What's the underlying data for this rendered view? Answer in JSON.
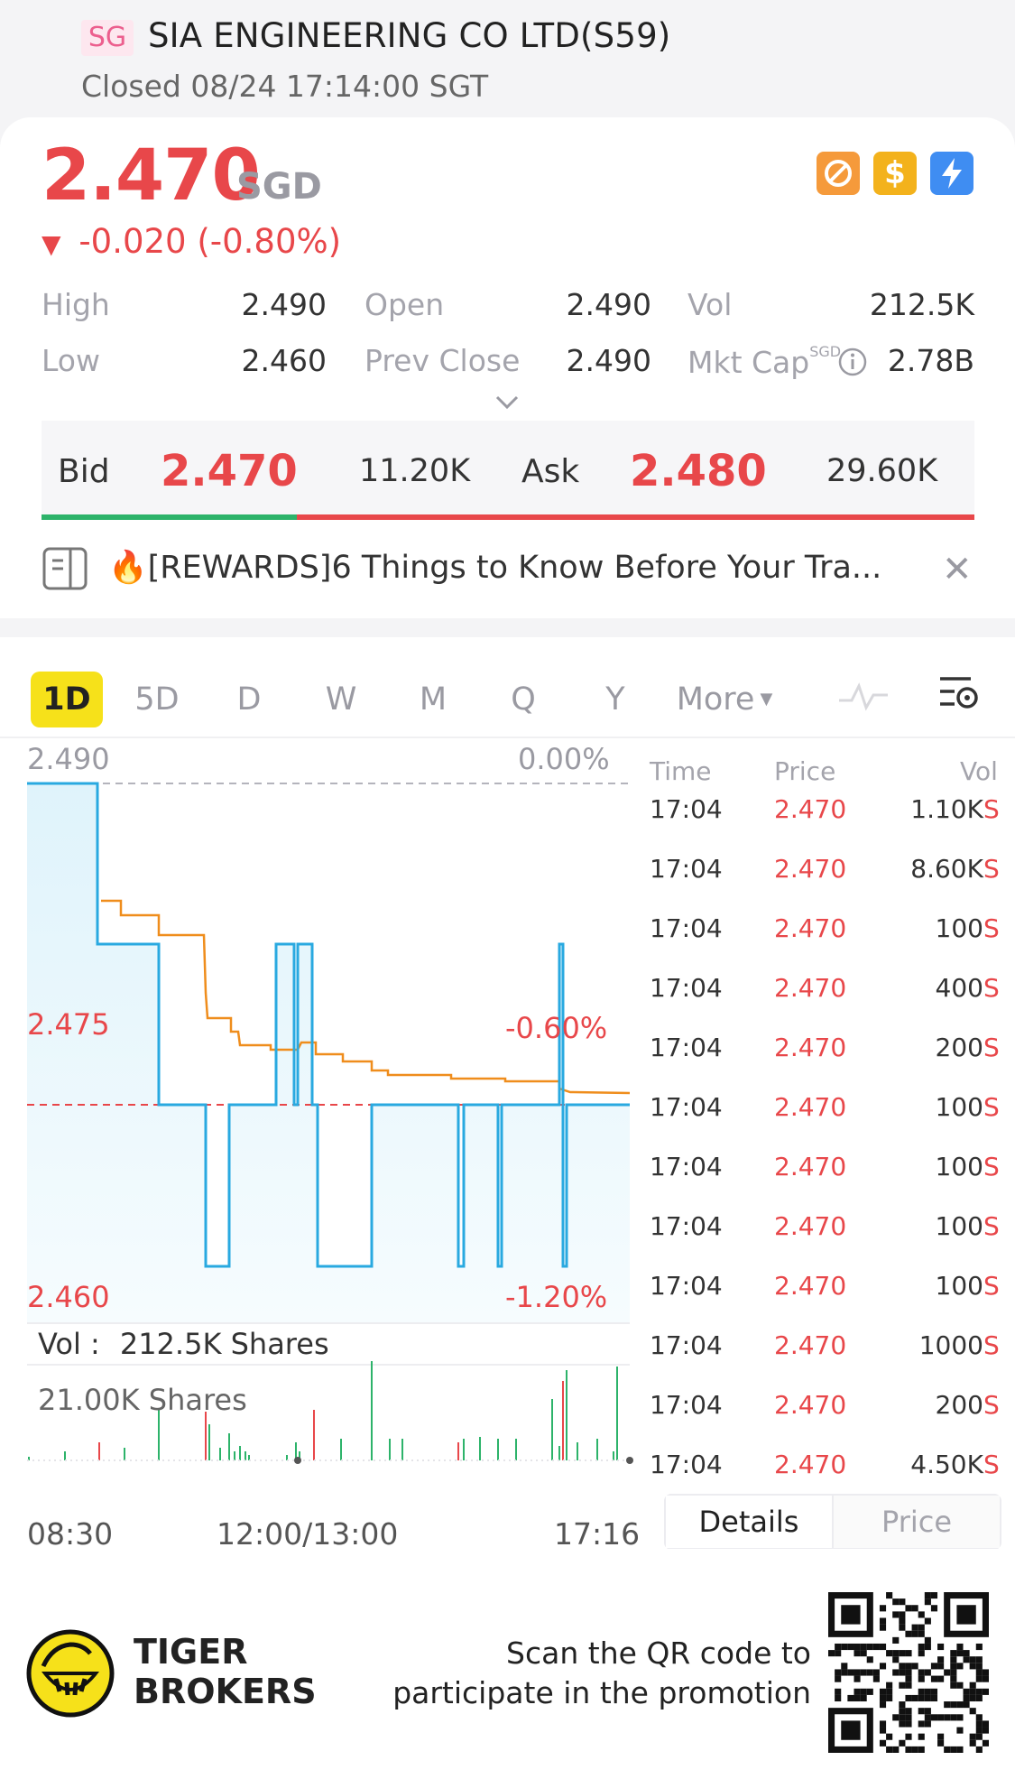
{
  "header": {
    "market_badge": "SG",
    "title": "SIA ENGINEERING CO LTD(S59)",
    "status": "Closed 08/24 17:14:00 SGT"
  },
  "quote": {
    "price": "2.470",
    "currency": "SGD",
    "change": "-0.020 (-0.80%)",
    "stats": {
      "high_label": "High",
      "high": "2.490",
      "low_label": "Low",
      "low": "2.460",
      "open_label": "Open",
      "open": "2.490",
      "prev_close_label": "Prev Close",
      "prev_close": "2.490",
      "vol_label": "Vol",
      "vol": "212.5K",
      "mkt_cap_label": "Mkt Cap",
      "mkt_cap_unit": "SGD",
      "mkt_cap": "2.78B"
    }
  },
  "bid_ask": {
    "bid_label": "Bid",
    "bid_price": "2.470",
    "bid_vol": "11.20K",
    "ask_label": "Ask",
    "ask_price": "2.480",
    "ask_vol": "29.60K",
    "bid_ratio": 0.274
  },
  "news": {
    "text": "🔥[REWARDS]6 Things to Know Before Your Tra..."
  },
  "tabs": [
    "1D",
    "5D",
    "D",
    "W",
    "M",
    "Q",
    "Y",
    "More"
  ],
  "chart": {
    "price_top": "2.490",
    "pct_top": "0.00%",
    "price_mid": "2.475",
    "pct_mid": "-0.60%",
    "price_bottom": "2.460",
    "pct_bottom": "-1.20%",
    "vol_label": "Vol :",
    "vol_value": "212.5K Shares",
    "vol_max": "21.00K Shares",
    "time_start": "08:30",
    "time_mid": "12:00/13:00",
    "time_end": "17:16"
  },
  "trades": {
    "headers": {
      "time": "Time",
      "price": "Price",
      "vol": "Vol"
    },
    "rows": [
      {
        "time": "17:04",
        "price": "2.470",
        "vol": "1.10K",
        "side": "S"
      },
      {
        "time": "17:04",
        "price": "2.470",
        "vol": "8.60K",
        "side": "S"
      },
      {
        "time": "17:04",
        "price": "2.470",
        "vol": "100",
        "side": "S"
      },
      {
        "time": "17:04",
        "price": "2.470",
        "vol": "400",
        "side": "S"
      },
      {
        "time": "17:04",
        "price": "2.470",
        "vol": "200",
        "side": "S"
      },
      {
        "time": "17:04",
        "price": "2.470",
        "vol": "100",
        "side": "S"
      },
      {
        "time": "17:04",
        "price": "2.470",
        "vol": "100",
        "side": "S"
      },
      {
        "time": "17:04",
        "price": "2.470",
        "vol": "100",
        "side": "S"
      },
      {
        "time": "17:04",
        "price": "2.470",
        "vol": "100",
        "side": "S"
      },
      {
        "time": "17:04",
        "price": "2.470",
        "vol": "1000",
        "side": "S"
      },
      {
        "time": "17:04",
        "price": "2.470",
        "vol": "200",
        "side": "S"
      },
      {
        "time": "17:04",
        "price": "2.470",
        "vol": "4.50K",
        "side": "S"
      }
    ],
    "details_tab": "Details",
    "price_tab": "Price"
  },
  "footer": {
    "brand_line1": "TIGER",
    "brand_line2": "BROKERS",
    "promo_line1": "Scan the QR code to",
    "promo_line2": "participate in the promotion"
  },
  "colors": {
    "up": "#2db36a",
    "down": "#e8474a",
    "accent": "#f6e11a",
    "price_line": "#29a9e0",
    "avg_line": "#ef8d1c"
  }
}
